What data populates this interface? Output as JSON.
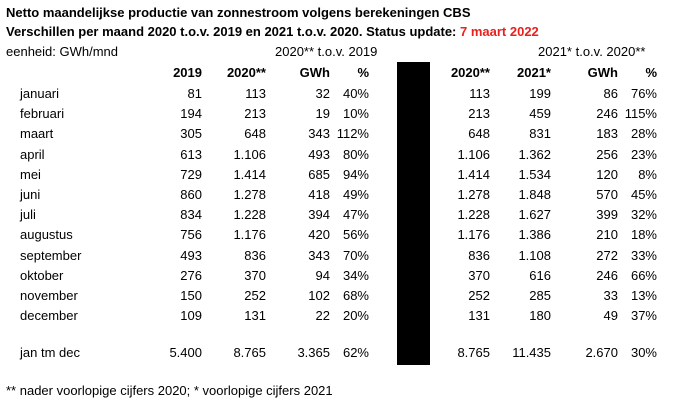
{
  "title_line1": "Netto maandelijkse productie van zonnestroom volgens berekeningen CBS",
  "title_line2_prefix": "Verschillen per maand 2020 t.o.v. 2019 en 2021 t.o.v. 2020. Status update: ",
  "title_line2_date": "7 maart 2022",
  "unit_label": "eenheid: GWh/mnd",
  "group1_label": "2020** t.o.v. 2019",
  "group2_label": "2021* t.o.v. 2020**",
  "headers_left": [
    "2019",
    "2020**",
    "GWh",
    "%"
  ],
  "headers_right": [
    "2020**",
    "2021*",
    "GWh",
    "%"
  ],
  "rows": [
    {
      "month": "januari",
      "v2019": "81",
      "v2020": "113",
      "d1": "32",
      "p1": "40%",
      "r2020": "113",
      "v2021": "199",
      "d2": "86",
      "p2": "76%"
    },
    {
      "month": "februari",
      "v2019": "194",
      "v2020": "213",
      "d1": "19",
      "p1": "10%",
      "r2020": "213",
      "v2021": "459",
      "d2": "246",
      "p2": "115%"
    },
    {
      "month": "maart",
      "v2019": "305",
      "v2020": "648",
      "d1": "343",
      "p1": "112%",
      "r2020": "648",
      "v2021": "831",
      "d2": "183",
      "p2": "28%"
    },
    {
      "month": "april",
      "v2019": "613",
      "v2020": "1.106",
      "d1": "493",
      "p1": "80%",
      "r2020": "1.106",
      "v2021": "1.362",
      "d2": "256",
      "p2": "23%"
    },
    {
      "month": "mei",
      "v2019": "729",
      "v2020": "1.414",
      "d1": "685",
      "p1": "94%",
      "r2020": "1.414",
      "v2021": "1.534",
      "d2": "120",
      "p2": "8%"
    },
    {
      "month": "juni",
      "v2019": "860",
      "v2020": "1.278",
      "d1": "418",
      "p1": "49%",
      "r2020": "1.278",
      "v2021": "1.848",
      "d2": "570",
      "p2": "45%"
    },
    {
      "month": "juli",
      "v2019": "834",
      "v2020": "1.228",
      "d1": "394",
      "p1": "47%",
      "r2020": "1.228",
      "v2021": "1.627",
      "d2": "399",
      "p2": "32%"
    },
    {
      "month": "augustus",
      "v2019": "756",
      "v2020": "1.176",
      "d1": "420",
      "p1": "56%",
      "r2020": "1.176",
      "v2021": "1.386",
      "d2": "210",
      "p2": "18%"
    },
    {
      "month": "september",
      "v2019": "493",
      "v2020": "836",
      "d1": "343",
      "p1": "70%",
      "r2020": "836",
      "v2021": "1.108",
      "d2": "272",
      "p2": "33%"
    },
    {
      "month": "oktober",
      "v2019": "276",
      "v2020": "370",
      "d1": "94",
      "p1": "34%",
      "r2020": "370",
      "v2021": "616",
      "d2": "246",
      "p2": "66%"
    },
    {
      "month": "november",
      "v2019": "150",
      "v2020": "252",
      "d1": "102",
      "p1": "68%",
      "r2020": "252",
      "v2021": "285",
      "d2": "33",
      "p2": "13%"
    },
    {
      "month": "december",
      "v2019": "109",
      "v2020": "131",
      "d1": "22",
      "p1": "20%",
      "r2020": "131",
      "v2021": "180",
      "d2": "49",
      "p2": "37%"
    }
  ],
  "total": {
    "month": "jan tm dec",
    "v2019": "5.400",
    "v2020": "8.765",
    "d1": "3.365",
    "p1": "62%",
    "r2020": "8.765",
    "v2021": "11.435",
    "d2": "2.670",
    "p2": "30%"
  },
  "footnote": "** nader voorlopige cijfers 2020; * voorlopige cijfers 2021",
  "colors": {
    "highlight": "#e8201e",
    "divider": "#000000"
  }
}
